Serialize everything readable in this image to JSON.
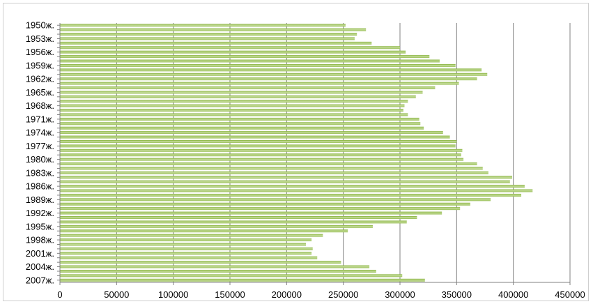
{
  "chart_data": {
    "type": "bar",
    "orientation": "horizontal",
    "categories": [
      "1950ж.",
      "1951ж.",
      "1952ж.",
      "1953ж.",
      "1954ж.",
      "1955ж.",
      "1956ж.",
      "1957ж.",
      "1958ж.",
      "1959ж.",
      "1960ж.",
      "1961ж.",
      "1962ж.",
      "1963ж.",
      "1964ж.",
      "1965ж.",
      "1966ж.",
      "1967ж.",
      "1968ж.",
      "1969ж.",
      "1970ж.",
      "1971ж.",
      "1972ж.",
      "1973ж.",
      "1974ж.",
      "1975ж.",
      "1976ж.",
      "1977ж.",
      "1978ж.",
      "1979ж.",
      "1980ж.",
      "1981ж.",
      "1982ж.",
      "1983ж.",
      "1984ж.",
      "1985ж.",
      "1986ж.",
      "1987ж.",
      "1988ж.",
      "1989ж.",
      "1990ж.",
      "1991ж.",
      "1992ж.",
      "1993ж.",
      "1994ж.",
      "1995ж.",
      "1996ж.",
      "1997ж.",
      "1998ж.",
      "1999ж.",
      "2000ж.",
      "2001ж.",
      "2002ж.",
      "2003ж.",
      "2004ж.",
      "2005ж.",
      "2006ж.",
      "2007ж."
    ],
    "category_labels_shown": [
      "1950ж.",
      "1953ж.",
      "1956ж.",
      "1959ж.",
      "1962ж.",
      "1965ж.",
      "1968ж.",
      "1971ж.",
      "1974ж.",
      "1977ж.",
      "1980ж.",
      "1983ж.",
      "1986ж.",
      "1989ж.",
      "1992ж.",
      "1995ж.",
      "1998ж.",
      "2001ж.",
      "2004ж.",
      "2007ж."
    ],
    "values": [
      252000,
      270000,
      262000,
      260000,
      275000,
      300000,
      305000,
      326000,
      335000,
      349000,
      372000,
      377000,
      368000,
      352000,
      331000,
      320000,
      314000,
      307000,
      304000,
      303000,
      307000,
      317000,
      318000,
      321000,
      338000,
      344000,
      350000,
      349000,
      355000,
      354000,
      356000,
      368000,
      373000,
      378000,
      399000,
      397000,
      410000,
      417000,
      407000,
      380000,
      362000,
      353000,
      337000,
      315000,
      306000,
      276000,
      254000,
      232000,
      222000,
      217000,
      223000,
      222000,
      227000,
      248000,
      273000,
      279000,
      302000,
      322000
    ],
    "xlim": [
      0,
      450000
    ],
    "x_ticks": [
      "0",
      "50000",
      "100000",
      "150000",
      "200000",
      "250000",
      "300000",
      "350000",
      "400000",
      "450000"
    ],
    "grid": "vertical",
    "colors": {
      "bar": "#8db83e",
      "bar_light": "#d9e6c0",
      "grid": "#808080"
    }
  }
}
